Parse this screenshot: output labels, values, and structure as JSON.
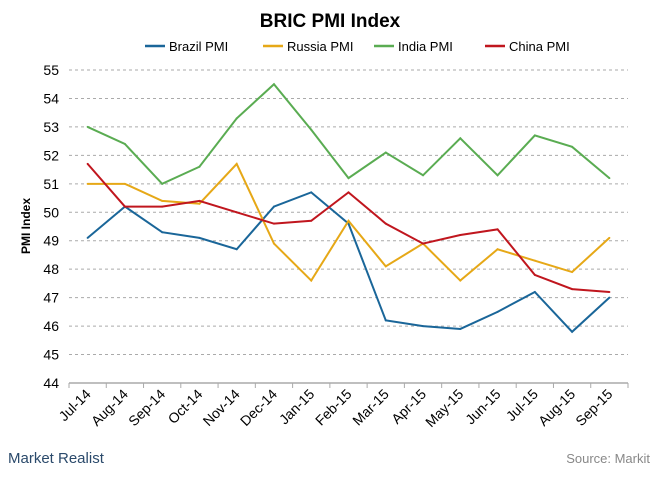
{
  "chart_data": {
    "type": "line",
    "title": "BRIC PMI Index",
    "xlabel": "",
    "ylabel": "PMI Index",
    "ylim": [
      44,
      55
    ],
    "yticks": [
      44,
      45,
      46,
      47,
      48,
      49,
      50,
      51,
      52,
      53,
      54,
      55
    ],
    "grid": true,
    "legend_position": "top",
    "categories": [
      "Jul-14",
      "Aug-14",
      "Sep-14",
      "Oct-14",
      "Nov-14",
      "Dec-14",
      "Jan-15",
      "Feb-15",
      "Mar-15",
      "Apr-15",
      "May-15",
      "Jun-15",
      "Jul-15",
      "Aug-15",
      "Sep-15"
    ],
    "series": [
      {
        "name": "Brazil PMI",
        "color": "#1a6699",
        "values": [
          49.1,
          50.2,
          49.3,
          49.1,
          48.7,
          50.2,
          50.7,
          49.6,
          46.2,
          46.0,
          45.9,
          46.5,
          47.2,
          45.8,
          47.0
        ]
      },
      {
        "name": "Russia PMI",
        "color": "#e6a817",
        "values": [
          51.0,
          51.0,
          50.4,
          50.3,
          51.7,
          48.9,
          47.6,
          49.7,
          48.1,
          48.9,
          47.6,
          48.7,
          48.3,
          47.9,
          49.1
        ]
      },
      {
        "name": "India PMI",
        "color": "#5aac52",
        "values": [
          53.0,
          52.4,
          51.0,
          51.6,
          53.3,
          54.5,
          52.9,
          51.2,
          52.1,
          51.3,
          52.6,
          51.3,
          52.7,
          52.3,
          51.2
        ]
      },
      {
        "name": "China PMI",
        "color": "#c0161e",
        "values": [
          51.7,
          50.2,
          50.2,
          50.4,
          50.0,
          49.6,
          49.7,
          50.7,
          49.6,
          48.9,
          49.2,
          49.4,
          47.8,
          47.3,
          47.2
        ]
      }
    ]
  },
  "footer": {
    "brand": "Market Realist",
    "source": "Source: Markit"
  }
}
